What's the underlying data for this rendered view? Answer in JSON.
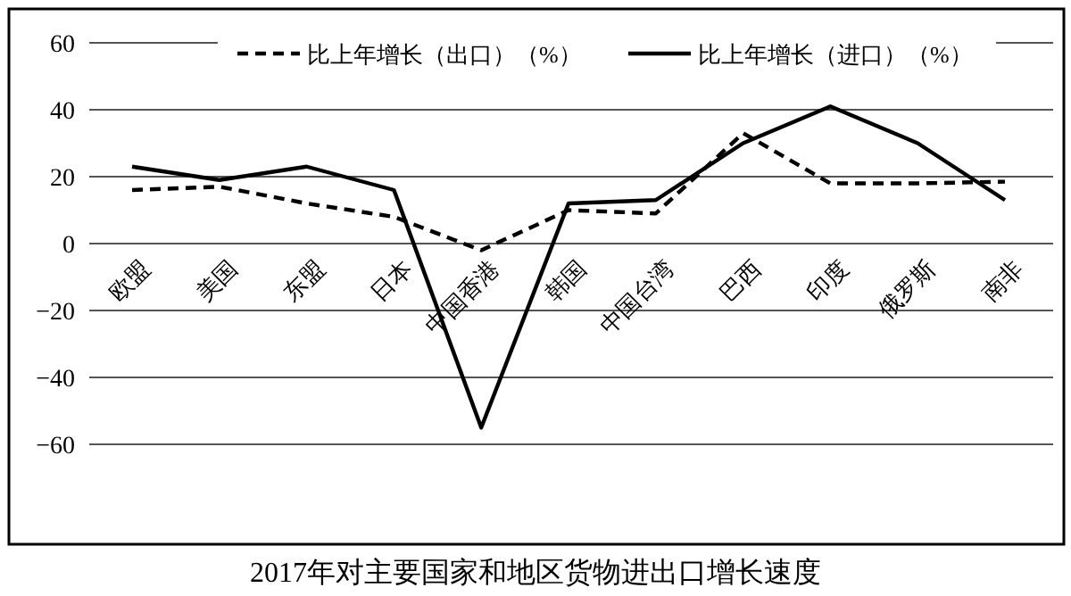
{
  "chart_data": {
    "type": "line",
    "title": "2017年对主要国家和地区货物进出口增长速度",
    "categories": [
      "欧盟",
      "美国",
      "东盟",
      "日本",
      "中国香港",
      "韩国",
      "中国台湾",
      "巴西",
      "印度",
      "俄罗斯",
      "南非"
    ],
    "series": [
      {
        "name": "比上年增长（出口）（%）",
        "color": "#000000",
        "line_style": "dashed",
        "values": [
          16,
          17,
          12,
          8,
          -2,
          10,
          9,
          33,
          18,
          18,
          18.5
        ]
      },
      {
        "name": "比上年增长（进口）（%）",
        "color": "#000000",
        "line_style": "solid",
        "values": [
          23,
          19,
          23,
          16,
          -55,
          12,
          13,
          30,
          41,
          30,
          13
        ]
      }
    ],
    "ylim": [
      -60,
      60
    ],
    "yticks": [
      60,
      40,
      20,
      0,
      -20,
      -40,
      -60
    ],
    "grid": "y",
    "legend": "top",
    "marker": "none"
  }
}
